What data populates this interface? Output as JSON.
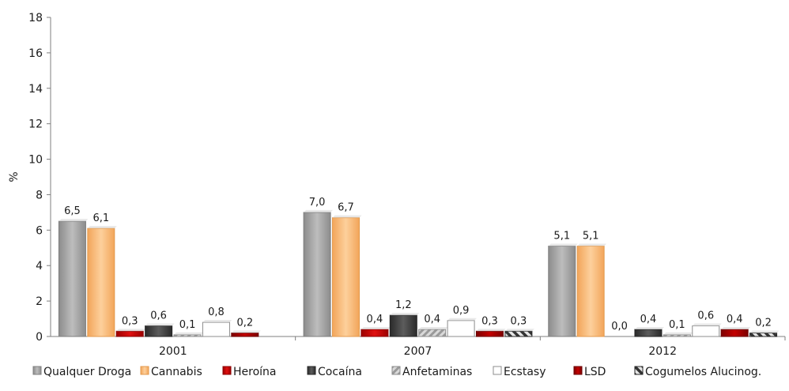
{
  "chart_data": {
    "type": "bar",
    "title": "",
    "xlabel": "",
    "ylabel": "%",
    "ylim": [
      0,
      18
    ],
    "yticks": [
      "0",
      "2",
      "4",
      "6",
      "8",
      "10",
      "12",
      "14",
      "16",
      "18"
    ],
    "categories": [
      "2001",
      "2007",
      "2012"
    ],
    "grid": false,
    "legend_position": "bottom",
    "series": [
      {
        "name": "Qualquer Droga",
        "values": [
          6.5,
          7.0,
          5.1
        ],
        "labels": [
          "6,5",
          "7,0",
          "5,1"
        ],
        "color": "#a6a6a6",
        "pattern": "solid"
      },
      {
        "name": "Cannabis",
        "values": [
          6.1,
          6.7,
          5.1
        ],
        "labels": [
          "6,1",
          "6,7",
          "5,1"
        ],
        "color": "#fbbf7b",
        "pattern": "solid"
      },
      {
        "name": "Heroína",
        "values": [
          0.3,
          0.4,
          0.0
        ],
        "labels": [
          "0,3",
          "0,4",
          "0,0"
        ],
        "color": "#c00000",
        "pattern": "solid"
      },
      {
        "name": "Cocaína",
        "values": [
          0.6,
          1.2,
          0.4
        ],
        "labels": [
          "0,6",
          "1,2",
          "0,4"
        ],
        "color": "#404040",
        "pattern": "solid"
      },
      {
        "name": "Anfetaminas",
        "values": [
          0.1,
          0.4,
          0.1
        ],
        "labels": [
          "0,1",
          "0,4",
          "0,1"
        ],
        "color": "#bfbfbf",
        "pattern": "diagonal"
      },
      {
        "name": "Ecstasy",
        "values": [
          0.8,
          0.9,
          0.6
        ],
        "labels": [
          "0,8",
          "0,9",
          "0,6"
        ],
        "color": "#ffffff",
        "pattern": "outline"
      },
      {
        "name": "LSD",
        "values": [
          0.2,
          0.3,
          0.4
        ],
        "labels": [
          "0,2",
          "0,3",
          "0,4"
        ],
        "color": "#a50000",
        "pattern": "solid"
      },
      {
        "name": "Cogumelos Alucinog.",
        "values": [
          null,
          0.3,
          0.2
        ],
        "labels": [
          "",
          "0,3",
          "0,2"
        ],
        "color": "#404040",
        "pattern": "diagonal-dark"
      }
    ]
  }
}
